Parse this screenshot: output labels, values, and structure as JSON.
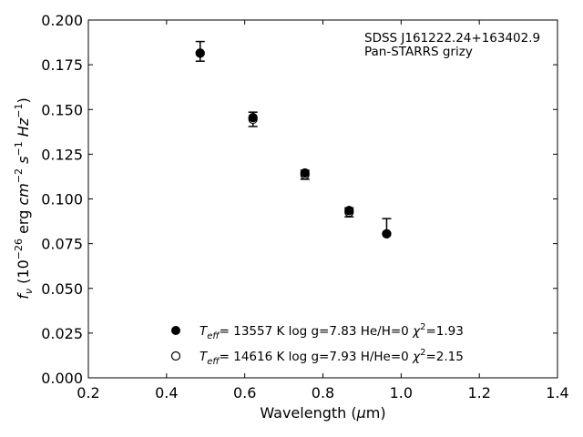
{
  "chart_data": {
    "type": "scatter",
    "annotation_lines": [
      "SDSS J161222.24+163402.9",
      "Pan-STARRS grizy"
    ],
    "xlabel": "Wavelength (μm)",
    "ylabel": "fν (10⁻²⁶ erg cm⁻² s⁻¹ Hz⁻¹)",
    "xlim": [
      0.2,
      1.4
    ],
    "ylim": [
      0.0,
      0.2
    ],
    "xticks": [
      "0.2",
      "0.4",
      "0.6",
      "0.8",
      "1.0",
      "1.2",
      "1.4"
    ],
    "yticks": [
      "0.000",
      "0.025",
      "0.050",
      "0.075",
      "0.100",
      "0.125",
      "0.150",
      "0.175",
      "0.200"
    ],
    "grid": false,
    "legend_position": "lower-center",
    "observed": {
      "x": [
        0.486,
        0.621,
        0.754,
        0.867,
        0.963
      ],
      "y": [
        0.1825,
        0.1445,
        0.1135,
        0.0925,
        0.0805
      ],
      "yerr_upper": [
        0.0055,
        0.004,
        0.0025,
        0.0025,
        0.0085
      ],
      "yerr_lower": [
        0.0055,
        0.004,
        0.0025,
        0.0025,
        0.0
      ]
    },
    "series": [
      {
        "name": "Teff= 13557 K  log g=7.83  He/H=0  χ²=1.93",
        "marker": "filled-circle",
        "x": [
          0.486,
          0.621,
          0.754,
          0.867,
          0.963
        ],
        "y": [
          0.1815,
          0.1455,
          0.1145,
          0.0935,
          0.0805
        ]
      },
      {
        "name": "Teff= 14616 K  log g=7.93  H/He=0  χ²=2.15",
        "marker": "open-circle",
        "x": [
          0.486,
          0.621,
          0.754,
          0.867,
          0.963
        ],
        "y": [
          0.1815,
          0.1445,
          0.1135,
          0.0925,
          0.0805
        ]
      }
    ],
    "colors": {
      "marker": "#000000",
      "axis": "#000000",
      "background": "#ffffff"
    }
  }
}
